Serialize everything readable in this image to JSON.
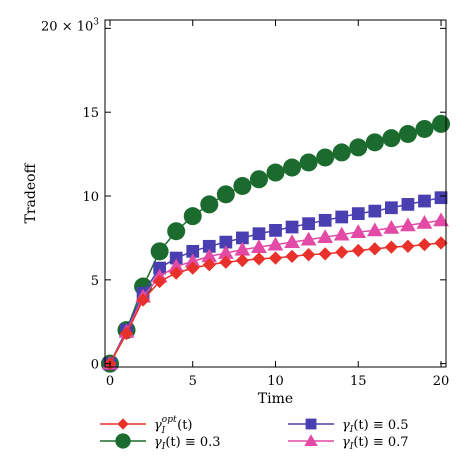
{
  "chart_data": {
    "type": "line",
    "xlabel": "Time",
    "ylabel": "Tradeoff",
    "xlim": [
      -0.3,
      20.3
    ],
    "ylim": [
      -0.2,
      20.5
    ],
    "x_ticks": [
      0,
      5,
      10,
      15,
      20
    ],
    "y_ticks": [
      0,
      5,
      10,
      15,
      20
    ],
    "y_tick_labels": [
      "0",
      "5",
      "10",
      "15",
      "20 × 10"
    ],
    "y_multiplier_exponent": "3",
    "x": [
      0,
      1,
      2,
      3,
      4,
      5,
      6,
      7,
      8,
      9,
      10,
      11,
      12,
      13,
      14,
      15,
      16,
      17,
      18,
      19,
      20
    ],
    "series": [
      {
        "legend": "γ_I^opt(t)",
        "color": "#e8312a",
        "marker": "diamond",
        "values": [
          0,
          1.8,
          3.8,
          4.9,
          5.4,
          5.7,
          5.9,
          6.05,
          6.15,
          6.25,
          6.3,
          6.4,
          6.5,
          6.55,
          6.65,
          6.75,
          6.85,
          6.95,
          7.0,
          7.1,
          7.2
        ]
      },
      {
        "legend": "γ_I(t) ≡ 0.3",
        "color": "#1b6b2e",
        "marker": "circle",
        "values": [
          0,
          2.0,
          4.6,
          6.7,
          7.9,
          8.8,
          9.5,
          10.1,
          10.6,
          11.0,
          11.4,
          11.7,
          12.0,
          12.3,
          12.6,
          12.9,
          13.2,
          13.45,
          13.7,
          14.0,
          14.3
        ]
      },
      {
        "legend": "γ_I(t) ≡ 0.5",
        "color": "#4a3fb0",
        "marker": "square",
        "values": [
          0,
          2.0,
          4.2,
          5.7,
          6.3,
          6.7,
          7.0,
          7.25,
          7.5,
          7.75,
          7.95,
          8.15,
          8.35,
          8.55,
          8.75,
          8.95,
          9.1,
          9.3,
          9.5,
          9.7,
          9.9
        ]
      },
      {
        "legend": "γ_I(t) ≡ 0.7",
        "color": "#e24aa6",
        "marker": "triangle",
        "values": [
          0,
          1.9,
          4.0,
          5.2,
          5.8,
          6.1,
          6.4,
          6.6,
          6.8,
          6.95,
          7.1,
          7.25,
          7.4,
          7.55,
          7.7,
          7.85,
          7.95,
          8.1,
          8.25,
          8.4,
          8.55
        ]
      }
    ],
    "legend_entries": [
      {
        "base": "γ",
        "sub": "I",
        "sup": "opt",
        "rest": "(t)"
      },
      {
        "base": "γ",
        "sub": "I",
        "sup": "",
        "rest": "(t) ≡ 0.3"
      },
      {
        "base": "γ",
        "sub": "I",
        "sup": "",
        "rest": "(t) ≡ 0.5"
      },
      {
        "base": "γ",
        "sub": "I",
        "sup": "",
        "rest": "(t) ≡ 0.7"
      }
    ],
    "legend_position": "bottom",
    "grid": false
  }
}
